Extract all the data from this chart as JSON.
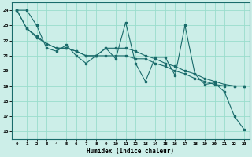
{
  "xlabel": "Humidex (Indice chaleur)",
  "bg_color": "#cceee8",
  "grid_color": "#99ddcc",
  "line_color": "#1a6b6b",
  "ylim": [
    15.5,
    24.5
  ],
  "xlim": [
    -0.5,
    23.5
  ],
  "yticks": [
    16,
    17,
    18,
    19,
    20,
    21,
    22,
    23,
    24
  ],
  "xticks": [
    0,
    1,
    2,
    3,
    4,
    5,
    6,
    7,
    8,
    9,
    10,
    11,
    12,
    13,
    14,
    15,
    16,
    17,
    18,
    19,
    20,
    21,
    22,
    23
  ],
  "line1_x": [
    0,
    1,
    2,
    3,
    4,
    5,
    6,
    7,
    8,
    9,
    10,
    11,
    12,
    13,
    14,
    15,
    16,
    17,
    18,
    19,
    20,
    21,
    22,
    23
  ],
  "line1_y": [
    24.0,
    24.0,
    23.0,
    21.5,
    21.3,
    21.7,
    21.0,
    20.5,
    21.0,
    21.5,
    20.8,
    23.2,
    20.5,
    19.3,
    20.9,
    20.9,
    19.7,
    23.0,
    19.8,
    19.1,
    19.2,
    18.6,
    17.0,
    16.1
  ],
  "line2_x": [
    0,
    1,
    2,
    3,
    4,
    5,
    6,
    7,
    8,
    9,
    10,
    11,
    12,
    13,
    14,
    15,
    16,
    17,
    18,
    19,
    20,
    21,
    22,
    23
  ],
  "line2_y": [
    24.0,
    22.8,
    22.3,
    21.8,
    21.5,
    21.5,
    21.3,
    21.0,
    21.0,
    21.0,
    21.0,
    21.0,
    20.8,
    20.8,
    20.5,
    20.3,
    20.0,
    19.8,
    19.5,
    19.3,
    19.1,
    19.0,
    19.0,
    19.0
  ],
  "line3_x": [
    0,
    1,
    2,
    3,
    4,
    5,
    6,
    7,
    8,
    9,
    10,
    11,
    12,
    13,
    14,
    15,
    16,
    17,
    18,
    19,
    20,
    21,
    22,
    23
  ],
  "line3_y": [
    24.0,
    22.8,
    22.2,
    21.8,
    21.5,
    21.5,
    21.3,
    21.0,
    21.0,
    21.5,
    21.5,
    21.5,
    21.3,
    21.0,
    20.8,
    20.5,
    20.3,
    20.0,
    19.8,
    19.5,
    19.3,
    19.1,
    19.0,
    19.0
  ]
}
